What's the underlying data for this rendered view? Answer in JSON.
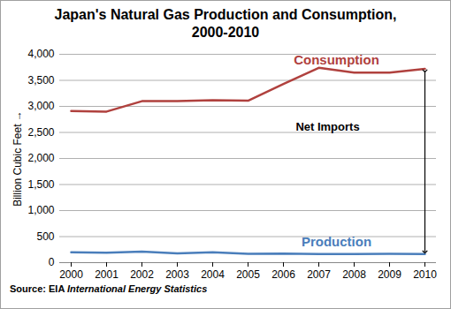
{
  "chart_data": {
    "type": "line",
    "title": "Japan's Natural Gas Production and Consumption,\n2000-2010",
    "y_label": "Billion Cubic Feet",
    "categories": [
      "2000",
      "2001",
      "2002",
      "2003",
      "2004",
      "2005",
      "2006",
      "2007",
      "2008",
      "2009",
      "2010"
    ],
    "series": [
      {
        "name": "Consumption",
        "color": "#b0413e",
        "values": [
          2910,
          2900,
          3100,
          3100,
          3120,
          3110,
          3430,
          3740,
          3650,
          3650,
          3720
        ]
      },
      {
        "name": "Production",
        "color": "#4a7ebb",
        "values": [
          200,
          190,
          210,
          180,
          200,
          170,
          175,
          165,
          165,
          170,
          165
        ]
      }
    ],
    "annotation": "Net Imports",
    "source": {
      "text": "Source: EIA",
      "title": "International Energy Statistics"
    },
    "ylim": [
      0,
      4000
    ],
    "yticks": [
      0,
      500,
      1000,
      1500,
      2000,
      2500,
      3000,
      3500,
      4000
    ],
    "grid": true
  }
}
